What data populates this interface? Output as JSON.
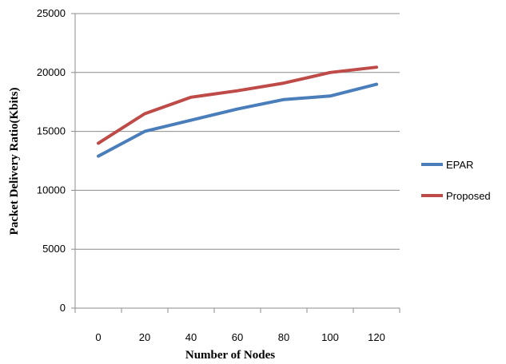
{
  "chart_data": {
    "type": "line",
    "xlabel": "Number of Nodes",
    "ylabel": "Packet Delivery Ratio(Kbits)",
    "x": [
      0,
      20,
      40,
      60,
      80,
      100,
      120
    ],
    "ylim": [
      0,
      25000
    ],
    "yticks": [
      0,
      5000,
      10000,
      15000,
      20000,
      25000
    ],
    "grid": "horizontal",
    "legend": "right",
    "series": [
      {
        "name": "EPAR",
        "color": "#4a7ebb",
        "values": [
          12900,
          15000,
          15950,
          16900,
          17700,
          18000,
          19000
        ]
      },
      {
        "name": "Proposed",
        "color": "#be4b48",
        "values": [
          14000,
          16500,
          17900,
          18450,
          19100,
          20000,
          20450
        ]
      }
    ]
  }
}
